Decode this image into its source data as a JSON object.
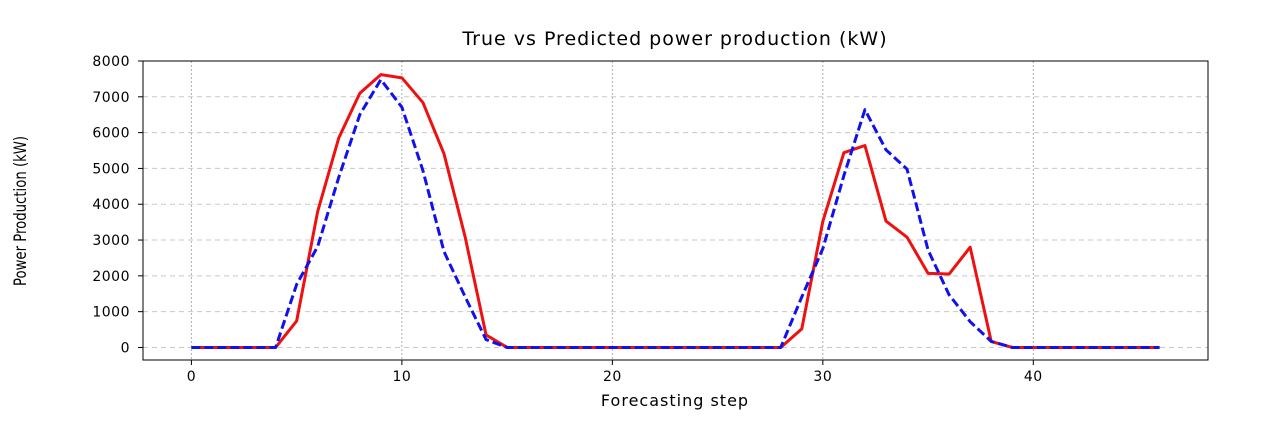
{
  "chart_data": {
    "type": "line",
    "title": "True vs Predicted power production (kW)",
    "xlabel": "Forecasting step",
    "ylabel": "Power Production (kW)",
    "xlim": [
      -2.3,
      48.3
    ],
    "ylim": [
      -350,
      8000
    ],
    "xticks": [
      0,
      10,
      20,
      30,
      40
    ],
    "yticks": [
      0,
      1000,
      2000,
      3000,
      4000,
      5000,
      6000,
      7000,
      8000
    ],
    "grid": true,
    "legend": "none",
    "x": [
      0,
      1,
      2,
      3,
      4,
      5,
      6,
      7,
      8,
      9,
      10,
      11,
      12,
      13,
      14,
      15,
      16,
      17,
      18,
      19,
      20,
      21,
      22,
      23,
      24,
      25,
      26,
      27,
      28,
      29,
      30,
      31,
      32,
      33,
      34,
      35,
      36,
      37,
      38,
      39,
      40,
      41,
      42,
      43,
      44,
      45,
      46
    ],
    "series": [
      {
        "color": "#ee1111",
        "style": "solid",
        "values": [
          0,
          0,
          0,
          0,
          0,
          740,
          3800,
          5850,
          7100,
          7620,
          7530,
          6840,
          5410,
          3100,
          350,
          0,
          0,
          0,
          0,
          0,
          0,
          0,
          0,
          0,
          0,
          0,
          0,
          0,
          0,
          520,
          3520,
          5440,
          5640,
          3530,
          3080,
          2070,
          2050,
          2800,
          170,
          0,
          0,
          0,
          0,
          0,
          0,
          0,
          0
        ]
      },
      {
        "color": "#1111ee",
        "style": "dashed",
        "values": [
          0,
          0,
          0,
          0,
          0,
          1760,
          2820,
          4750,
          6500,
          7480,
          6710,
          4940,
          2680,
          1420,
          220,
          0,
          0,
          0,
          0,
          0,
          0,
          0,
          0,
          0,
          0,
          0,
          0,
          0,
          0,
          1410,
          2760,
          4800,
          6640,
          5520,
          4980,
          2720,
          1470,
          720,
          170,
          0,
          0,
          0,
          0,
          0,
          0,
          0,
          0
        ]
      }
    ]
  }
}
